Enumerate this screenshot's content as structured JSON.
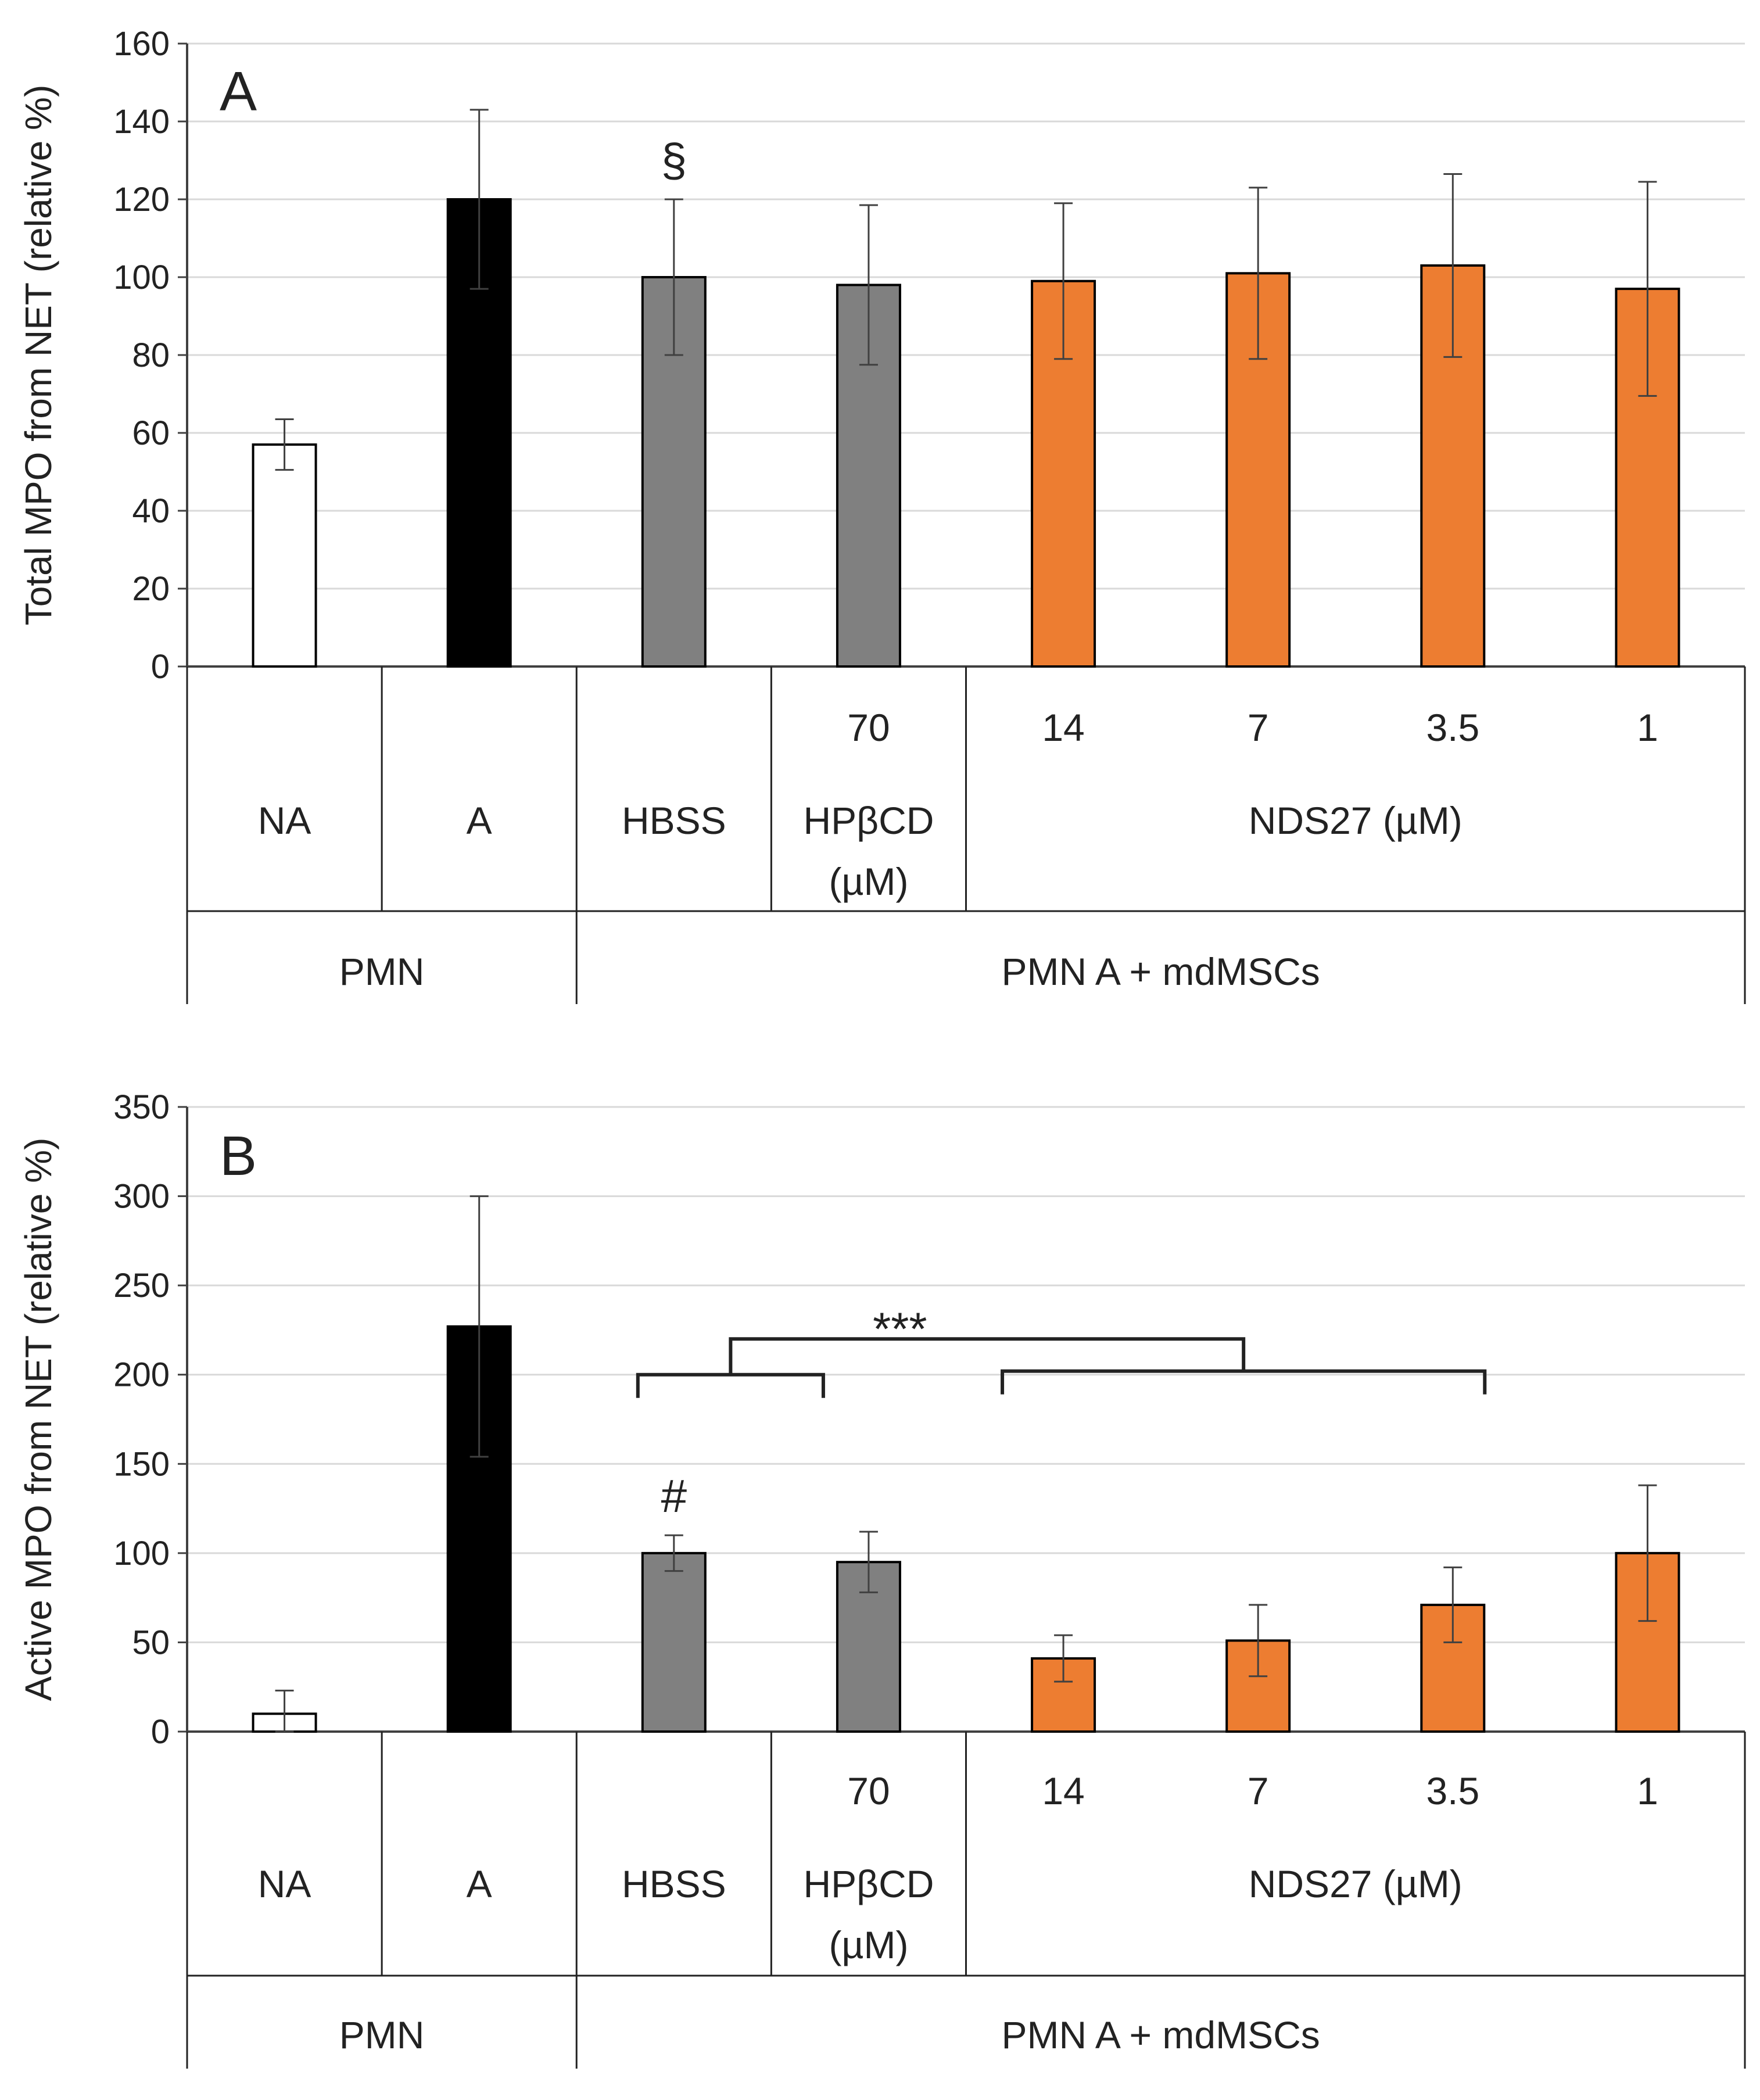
{
  "chart_data": [
    {
      "type": "bar",
      "panel": "A",
      "ylabel": "Total MPO from NET (relative %)",
      "ylim": [
        0,
        160
      ],
      "yticks": [
        0,
        20,
        40,
        60,
        80,
        100,
        120,
        140,
        160
      ],
      "grid": true,
      "categories": [
        "NA",
        "A",
        "HBSS",
        "HPβCD 70",
        "NDS27 14",
        "NDS27 7",
        "NDS27 3.5",
        "NDS27 1"
      ],
      "values": [
        57,
        120,
        100,
        98,
        99,
        101,
        103,
        97
      ],
      "errors": [
        6.5,
        23,
        20,
        20.5,
        20,
        22,
        23.5,
        27.5
      ],
      "colors": [
        "#ffffff",
        "#000000",
        "#808080",
        "#808080",
        "#ed7d31",
        "#ed7d31",
        "#ed7d31",
        "#ed7d31"
      ],
      "annotations": [
        {
          "category_index": 2,
          "text": "§"
        }
      ],
      "label_rows": {
        "row1": [
          {
            "text": "",
            "from": 0,
            "to": 0
          },
          {
            "text": "",
            "from": 1,
            "to": 1
          },
          {
            "text": "",
            "from": 2,
            "to": 2
          },
          {
            "text": "70",
            "from": 3,
            "to": 3
          },
          {
            "text": "14",
            "from": 4,
            "to": 4
          },
          {
            "text": "7",
            "from": 5,
            "to": 5
          },
          {
            "text": "3.5",
            "from": 6,
            "to": 6
          },
          {
            "text": "1",
            "from": 7,
            "to": 7
          }
        ],
        "row2": [
          {
            "text": "NA",
            "from": 0,
            "to": 0
          },
          {
            "text": "A",
            "from": 1,
            "to": 1
          },
          {
            "text": "HBSS",
            "from": 2,
            "to": 2
          },
          {
            "text": "HPβCD",
            "text2": "(µM)",
            "from": 3,
            "to": 3
          },
          {
            "text": "NDS27 (µM)",
            "from": 4,
            "to": 7
          }
        ],
        "row3": [
          {
            "text": "PMN",
            "from": 0,
            "to": 1
          },
          {
            "text": "PMN A + mdMSCs",
            "from": 2,
            "to": 7
          }
        ]
      }
    },
    {
      "type": "bar",
      "panel": "B",
      "ylabel": "Active MPO from NET (relative %)",
      "ylim": [
        0,
        350
      ],
      "yticks": [
        0,
        50,
        100,
        150,
        200,
        250,
        300,
        350
      ],
      "grid": true,
      "categories": [
        "NA",
        "A",
        "HBSS",
        "HPβCD 70",
        "NDS27 14",
        "NDS27 7",
        "NDS27 3.5",
        "NDS27 1"
      ],
      "values": [
        10,
        227,
        100,
        95,
        41,
        51,
        71,
        100
      ],
      "errors": [
        13,
        73,
        10,
        17,
        13,
        20,
        21,
        38
      ],
      "colors": [
        "#ffffff",
        "#000000",
        "#808080",
        "#808080",
        "#ed7d31",
        "#ed7d31",
        "#ed7d31",
        "#ed7d31"
      ],
      "annotations": [
        {
          "category_index": 2,
          "text": "#"
        }
      ],
      "bracket": {
        "text": "***",
        "left_group": [
          2,
          3
        ],
        "right_group": [
          4,
          6
        ]
      },
      "label_rows": {
        "row1": [
          {
            "text": "",
            "from": 0,
            "to": 0
          },
          {
            "text": "",
            "from": 1,
            "to": 1
          },
          {
            "text": "",
            "from": 2,
            "to": 2
          },
          {
            "text": "70",
            "from": 3,
            "to": 3
          },
          {
            "text": "14",
            "from": 4,
            "to": 4
          },
          {
            "text": "7",
            "from": 5,
            "to": 5
          },
          {
            "text": "3.5",
            "from": 6,
            "to": 6
          },
          {
            "text": "1",
            "from": 7,
            "to": 7
          }
        ],
        "row2": [
          {
            "text": "NA",
            "from": 0,
            "to": 0
          },
          {
            "text": "A",
            "from": 1,
            "to": 1
          },
          {
            "text": "HBSS",
            "from": 2,
            "to": 2
          },
          {
            "text": "HPβCD",
            "text2": "(µM)",
            "from": 3,
            "to": 3
          },
          {
            "text": "NDS27 (µM)",
            "from": 4,
            "to": 7
          }
        ],
        "row3": [
          {
            "text": "PMN",
            "from": 0,
            "to": 1
          },
          {
            "text": "PMN A + mdMSCs",
            "from": 2,
            "to": 7
          }
        ]
      }
    }
  ]
}
